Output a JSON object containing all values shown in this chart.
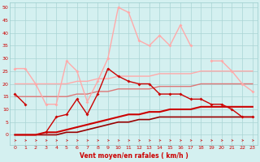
{
  "x": [
    0,
    1,
    2,
    3,
    4,
    5,
    6,
    7,
    8,
    9,
    10,
    11,
    12,
    13,
    14,
    15,
    16,
    17,
    18,
    19,
    20,
    21,
    22,
    23
  ],
  "rafales": [
    26,
    26,
    20,
    12,
    12,
    29,
    25,
    13,
    21,
    30,
    50,
    48,
    37,
    35,
    39,
    35,
    43,
    35,
    null,
    29,
    29,
    25,
    20,
    17
  ],
  "vent_moy": [
    16,
    12,
    null,
    1,
    7,
    8,
    14,
    8,
    16,
    26,
    23,
    21,
    20,
    20,
    16,
    16,
    16,
    14,
    14,
    12,
    12,
    10,
    7,
    7
  ],
  "flat_pink_high": [
    20,
    20,
    20,
    20,
    20,
    20,
    21,
    21,
    22,
    22,
    23,
    23,
    23,
    23,
    24,
    24,
    24,
    24,
    25,
    25,
    25,
    25,
    25,
    25
  ],
  "flat_pink_low": [
    15,
    15,
    15,
    15,
    15,
    15,
    16,
    16,
    17,
    17,
    18,
    18,
    18,
    18,
    19,
    19,
    19,
    19,
    20,
    20,
    20,
    20,
    20,
    20
  ],
  "flat_dark_high": [
    0,
    0,
    0,
    1,
    1,
    2,
    3,
    4,
    5,
    6,
    7,
    8,
    8,
    9,
    9,
    10,
    10,
    10,
    11,
    11,
    11,
    11,
    11,
    11
  ],
  "flat_dark_low": [
    0,
    0,
    0,
    0,
    0,
    1,
    1,
    2,
    3,
    4,
    5,
    5,
    6,
    6,
    7,
    7,
    7,
    7,
    7,
    7,
    7,
    7,
    7,
    7
  ],
  "background": "#d4f0f0",
  "grid_color": "#aad4d4",
  "col_rafales": "#ffaaaa",
  "col_vent": "#cc0000",
  "col_flat_pink_high": "#ffaaaa",
  "col_flat_pink_low": "#dd7777",
  "col_flat_dark_high": "#cc0000",
  "col_flat_dark_low": "#990000",
  "xlabel": "Vent moyen/en rafales ( km/h )",
  "ylim": [
    0,
    52
  ],
  "xlim": [
    -0.5,
    23.5
  ],
  "yticks": [
    0,
    5,
    10,
    15,
    20,
    25,
    30,
    35,
    40,
    45,
    50
  ],
  "xticks": [
    0,
    1,
    2,
    3,
    4,
    5,
    6,
    7,
    8,
    9,
    10,
    11,
    12,
    13,
    14,
    15,
    16,
    17,
    18,
    19,
    20,
    21,
    22,
    23
  ]
}
